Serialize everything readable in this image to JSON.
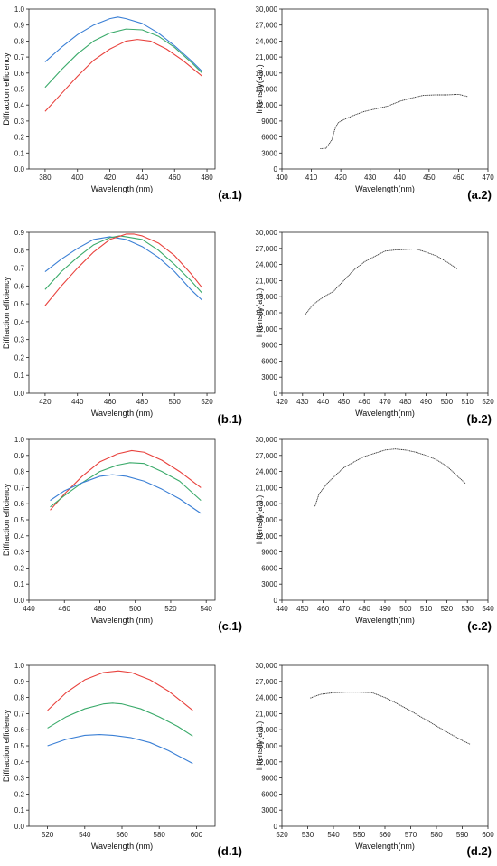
{
  "chart_data": [
    {
      "id": "a1",
      "type": "line",
      "panel_label": "(a.1)",
      "xlabel": "Wavelength (nm)",
      "ylabel": "Diffraction efficiency",
      "xlim": [
        370,
        485
      ],
      "ylim": [
        0,
        1.0
      ],
      "xticks": [
        380,
        400,
        420,
        440,
        460,
        480
      ],
      "yticks": [
        0.0,
        0.1,
        0.2,
        0.3,
        0.4,
        0.5,
        0.6,
        0.7,
        0.8,
        0.9,
        1.0
      ],
      "ytick_labels": [
        "0.0",
        "0.1",
        "0.2",
        "0.3",
        "0.4",
        "0.5",
        "0.6",
        "0.7",
        "0.8",
        "0.9",
        "1.0"
      ],
      "series": [
        {
          "color": "#3a7fd5",
          "x": [
            380,
            390,
            400,
            410,
            420,
            425,
            430,
            440,
            450,
            460,
            470,
            477
          ],
          "y": [
            0.67,
            0.76,
            0.84,
            0.9,
            0.94,
            0.95,
            0.94,
            0.91,
            0.85,
            0.77,
            0.68,
            0.61
          ]
        },
        {
          "color": "#3aaa6a",
          "x": [
            380,
            390,
            400,
            410,
            420,
            430,
            440,
            450,
            460,
            470,
            477
          ],
          "y": [
            0.51,
            0.62,
            0.72,
            0.8,
            0.85,
            0.875,
            0.87,
            0.83,
            0.76,
            0.67,
            0.6
          ]
        },
        {
          "color": "#e8413c",
          "x": [
            380,
            390,
            400,
            410,
            420,
            430,
            437,
            445,
            455,
            465,
            477
          ],
          "y": [
            0.36,
            0.47,
            0.58,
            0.68,
            0.75,
            0.8,
            0.81,
            0.8,
            0.75,
            0.68,
            0.58
          ]
        }
      ]
    },
    {
      "id": "a2",
      "type": "line",
      "panel_label": "(a.2)",
      "xlabel": "Wavelength(nm)",
      "ylabel": "Intensity(a.u.)",
      "xlim": [
        400,
        470
      ],
      "ylim": [
        0,
        30000
      ],
      "xticks": [
        400,
        410,
        420,
        430,
        440,
        450,
        460,
        470
      ],
      "yticks": [
        0,
        3000,
        6000,
        9000,
        12000,
        15000,
        18000,
        21000,
        24000,
        27000,
        30000
      ],
      "ytick_labels": [
        "0",
        "3000",
        "6000",
        "9000",
        "12,000",
        "15,000",
        "18,000",
        "21,000",
        "24,000",
        "27,000",
        "30,000"
      ],
      "series": [
        {
          "color": "#333333",
          "x": [
            413,
            415,
            417,
            418,
            419,
            420,
            422,
            425,
            428,
            432,
            436,
            440,
            444,
            448,
            452,
            456,
            460,
            463
          ],
          "y": [
            3800,
            3900,
            5500,
            7500,
            8600,
            9000,
            9500,
            10200,
            10800,
            11300,
            11800,
            12700,
            13300,
            13800,
            13900,
            13900,
            14000,
            13600
          ]
        }
      ]
    },
    {
      "id": "b1",
      "type": "line",
      "panel_label": "(b.1)",
      "xlabel": "Wavelength (nm)",
      "ylabel": "Diffraction efficiency",
      "xlim": [
        410,
        525
      ],
      "ylim": [
        0,
        0.9
      ],
      "xticks": [
        420,
        440,
        460,
        480,
        500,
        520
      ],
      "yticks": [
        0.0,
        0.1,
        0.2,
        0.3,
        0.4,
        0.5,
        0.6,
        0.7,
        0.8,
        0.9
      ],
      "ytick_labels": [
        "0.0",
        "0.1",
        "0.2",
        "0.3",
        "0.4",
        "0.5",
        "0.6",
        "0.7",
        "0.8",
        "0.9"
      ],
      "series": [
        {
          "color": "#3a7fd5",
          "x": [
            420,
            430,
            440,
            450,
            460,
            470,
            480,
            490,
            500,
            510,
            517
          ],
          "y": [
            0.68,
            0.75,
            0.81,
            0.86,
            0.875,
            0.86,
            0.82,
            0.76,
            0.68,
            0.58,
            0.52
          ]
        },
        {
          "color": "#3aaa6a",
          "x": [
            420,
            430,
            440,
            450,
            460,
            466,
            470,
            480,
            490,
            500,
            510,
            517
          ],
          "y": [
            0.58,
            0.68,
            0.76,
            0.83,
            0.87,
            0.88,
            0.875,
            0.86,
            0.8,
            0.72,
            0.63,
            0.56
          ]
        },
        {
          "color": "#e8413c",
          "x": [
            420,
            430,
            440,
            450,
            460,
            470,
            475,
            480,
            490,
            500,
            510,
            517
          ],
          "y": [
            0.49,
            0.6,
            0.7,
            0.79,
            0.86,
            0.89,
            0.89,
            0.88,
            0.84,
            0.77,
            0.67,
            0.59
          ]
        }
      ]
    },
    {
      "id": "b2",
      "type": "line",
      "panel_label": "(b.2)",
      "xlabel": "Wavelength(nm)",
      "ylabel": "Intensity(a.u.)",
      "xlim": [
        420,
        520
      ],
      "ylim": [
        0,
        30000
      ],
      "xticks": [
        420,
        430,
        440,
        450,
        460,
        470,
        480,
        490,
        500,
        510,
        520
      ],
      "yticks": [
        0,
        3000,
        6000,
        9000,
        12000,
        15000,
        18000,
        21000,
        24000,
        27000,
        30000
      ],
      "ytick_labels": [
        "0",
        "3000",
        "6000",
        "9000",
        "12,000",
        "15,000",
        "18,000",
        "21,000",
        "24,000",
        "27,000",
        "30,000"
      ],
      "series": [
        {
          "color": "#333333",
          "x": [
            431,
            435,
            440,
            445,
            450,
            455,
            460,
            465,
            470,
            475,
            480,
            485,
            490,
            495,
            500,
            505
          ],
          "y": [
            14500,
            16500,
            17900,
            19000,
            21000,
            23000,
            24500,
            25500,
            26500,
            26700,
            26800,
            26900,
            26300,
            25600,
            24500,
            23200
          ]
        }
      ]
    },
    {
      "id": "c1",
      "type": "line",
      "panel_label": "(c.1)",
      "xlabel": "Wavelength (nm)",
      "ylabel": "Diffraction efficiency",
      "xlim": [
        440,
        545
      ],
      "ylim": [
        0,
        1.0
      ],
      "xticks": [
        440,
        460,
        480,
        500,
        520,
        540
      ],
      "yticks": [
        0.0,
        0.1,
        0.2,
        0.3,
        0.4,
        0.5,
        0.6,
        0.7,
        0.8,
        0.9,
        1.0
      ],
      "ytick_labels": [
        "0.0",
        "0.1",
        "0.2",
        "0.3",
        "0.4",
        "0.5",
        "0.6",
        "0.7",
        "0.8",
        "0.9",
        "1.0"
      ],
      "series": [
        {
          "color": "#e8413c",
          "x": [
            452,
            460,
            470,
            480,
            490,
            498,
            505,
            515,
            525,
            537
          ],
          "y": [
            0.56,
            0.66,
            0.77,
            0.86,
            0.91,
            0.93,
            0.92,
            0.87,
            0.8,
            0.7
          ]
        },
        {
          "color": "#3aaa6a",
          "x": [
            452,
            460,
            470,
            480,
            490,
            497,
            505,
            515,
            525,
            537
          ],
          "y": [
            0.58,
            0.65,
            0.73,
            0.8,
            0.84,
            0.855,
            0.85,
            0.8,
            0.74,
            0.62
          ]
        },
        {
          "color": "#3a7fd5",
          "x": [
            452,
            460,
            470,
            480,
            487,
            495,
            505,
            515,
            525,
            537
          ],
          "y": [
            0.62,
            0.68,
            0.73,
            0.77,
            0.78,
            0.77,
            0.74,
            0.69,
            0.63,
            0.54
          ]
        }
      ]
    },
    {
      "id": "c2",
      "type": "line",
      "panel_label": "(c.2)",
      "xlabel": "Wavelength(nm)",
      "ylabel": "Intensity(a.u.)",
      "xlim": [
        440,
        540
      ],
      "ylim": [
        0,
        30000
      ],
      "xticks": [
        440,
        450,
        460,
        470,
        480,
        490,
        500,
        510,
        520,
        530,
        540
      ],
      "yticks": [
        0,
        3000,
        6000,
        9000,
        12000,
        15000,
        18000,
        21000,
        24000,
        27000,
        30000
      ],
      "ytick_labels": [
        "0",
        "3000",
        "6000",
        "9000",
        "12,000",
        "15,000",
        "18,000",
        "21,000",
        "24,000",
        "27,000",
        "30,000"
      ],
      "series": [
        {
          "color": "#333333",
          "x": [
            456,
            458,
            462,
            466,
            470,
            475,
            480,
            485,
            490,
            495,
            500,
            505,
            510,
            515,
            520,
            525,
            529
          ],
          "y": [
            17500,
            19800,
            21800,
            23300,
            24700,
            25800,
            26800,
            27400,
            28000,
            28200,
            28000,
            27600,
            27000,
            26200,
            25000,
            23200,
            21800
          ]
        }
      ]
    },
    {
      "id": "d1",
      "type": "line",
      "panel_label": "(d.1)",
      "xlabel": "Wavelength (nm)",
      "ylabel": "Diffraction efficiency",
      "xlim": [
        510,
        610
      ],
      "ylim": [
        0,
        1.0
      ],
      "xticks": [
        520,
        540,
        560,
        580,
        600
      ],
      "yticks": [
        0.0,
        0.1,
        0.2,
        0.3,
        0.4,
        0.5,
        0.6,
        0.7,
        0.8,
        0.9,
        1.0
      ],
      "ytick_labels": [
        "0.0",
        "0.1",
        "0.2",
        "0.3",
        "0.4",
        "0.5",
        "0.6",
        "0.7",
        "0.8",
        "0.9",
        "1.0"
      ],
      "series": [
        {
          "color": "#e8413c",
          "x": [
            520,
            530,
            540,
            550,
            558,
            565,
            575,
            585,
            598
          ],
          "y": [
            0.72,
            0.83,
            0.91,
            0.955,
            0.965,
            0.955,
            0.91,
            0.84,
            0.72
          ]
        },
        {
          "color": "#3aaa6a",
          "x": [
            520,
            530,
            540,
            550,
            555,
            560,
            570,
            580,
            590,
            598
          ],
          "y": [
            0.61,
            0.68,
            0.73,
            0.76,
            0.765,
            0.76,
            0.73,
            0.68,
            0.62,
            0.56
          ]
        },
        {
          "color": "#3a7fd5",
          "x": [
            520,
            530,
            540,
            548,
            555,
            565,
            575,
            585,
            598
          ],
          "y": [
            0.5,
            0.54,
            0.565,
            0.57,
            0.565,
            0.55,
            0.52,
            0.47,
            0.39
          ]
        }
      ]
    },
    {
      "id": "d2",
      "type": "line",
      "panel_label": "(d.2)",
      "xlabel": "Wavelength(nm)",
      "ylabel": "Intensity(a.u.)",
      "xlim": [
        520,
        600
      ],
      "ylim": [
        0,
        30000
      ],
      "xticks": [
        520,
        530,
        540,
        550,
        560,
        570,
        580,
        590,
        600
      ],
      "yticks": [
        0,
        3000,
        6000,
        9000,
        12000,
        15000,
        18000,
        21000,
        24000,
        27000,
        30000
      ],
      "ytick_labels": [
        "0",
        "3000",
        "6000",
        "9000",
        "12,000",
        "15,000",
        "18,000",
        "21,000",
        "24,000",
        "27,000",
        "30,000"
      ],
      "series": [
        {
          "color": "#333333",
          "x": [
            531,
            535,
            540,
            545,
            550,
            555,
            560,
            565,
            570,
            575,
            580,
            585,
            590,
            593
          ],
          "y": [
            23900,
            24600,
            24900,
            25000,
            25000,
            24900,
            24000,
            22800,
            21500,
            20100,
            18700,
            17300,
            16000,
            15300
          ]
        }
      ]
    }
  ]
}
